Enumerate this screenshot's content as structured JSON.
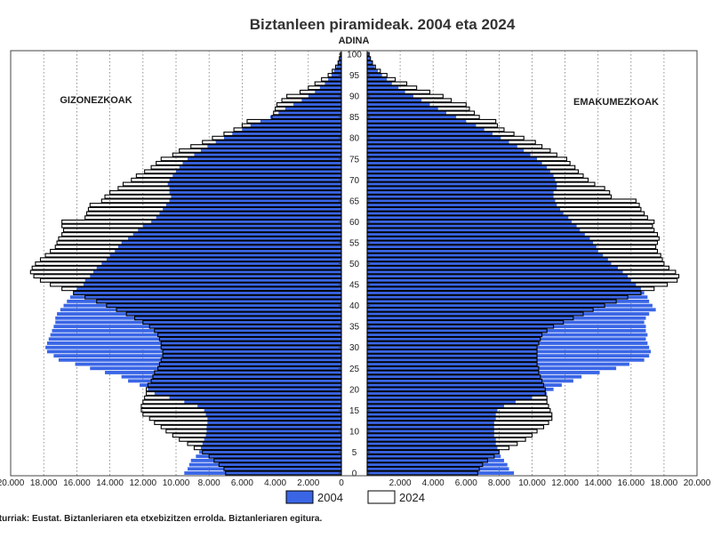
{
  "chart_data": {
    "type": "bar",
    "title": "Biztanleen piramideak. 2004 eta 2024",
    "center_label": "ADINA",
    "left_label": "GIZONEZKOAK",
    "right_label": "EMAKUMEZKOAK",
    "source": "Iturriak: Eustat. Biztanleriaren eta etxebizitzen errolda. Biztanleriaren egitura.",
    "ages": [
      0,
      1,
      2,
      3,
      4,
      5,
      6,
      7,
      8,
      9,
      10,
      11,
      12,
      13,
      14,
      15,
      16,
      17,
      18,
      19,
      20,
      21,
      22,
      23,
      24,
      25,
      26,
      27,
      28,
      29,
      30,
      31,
      32,
      33,
      34,
      35,
      36,
      37,
      38,
      39,
      40,
      41,
      42,
      43,
      44,
      45,
      46,
      47,
      48,
      49,
      50,
      51,
      52,
      53,
      54,
      55,
      56,
      57,
      58,
      59,
      60,
      61,
      62,
      63,
      64,
      65,
      66,
      67,
      68,
      69,
      70,
      71,
      72,
      73,
      74,
      75,
      76,
      77,
      78,
      79,
      80,
      81,
      82,
      83,
      84,
      85,
      86,
      87,
      88,
      89,
      90,
      91,
      92,
      93,
      94,
      95,
      96,
      97,
      98,
      99,
      100
    ],
    "age_ticks": [
      0,
      5,
      10,
      15,
      20,
      25,
      30,
      35,
      40,
      45,
      50,
      55,
      60,
      65,
      70,
      75,
      80,
      85,
      90,
      95,
      100
    ],
    "x_ticks": [
      "20.000",
      "18.000",
      "16.000",
      "14.000",
      "12.000",
      "10.000",
      "8.000",
      "6.000",
      "4.000",
      "2.000",
      "0",
      "2.000",
      "4.000",
      "6.000",
      "8.000",
      "10.000",
      "12.000",
      "14.000",
      "16.000",
      "18.000",
      "20.000"
    ],
    "xlim": [
      0,
      20000
    ],
    "series": [
      {
        "name": "2004",
        "color": "#3a66e6",
        "men": [
          9500,
          9300,
          9200,
          9100,
          8800,
          8600,
          8500,
          8400,
          8300,
          8200,
          8150,
          8150,
          8100,
          8100,
          8200,
          8300,
          8700,
          9500,
          10400,
          11300,
          11700,
          12200,
          12900,
          13300,
          14300,
          15200,
          16100,
          17100,
          17400,
          17800,
          17900,
          17800,
          17700,
          17600,
          17500,
          17400,
          17300,
          17300,
          17200,
          17000,
          16800,
          16600,
          16400,
          16200,
          16000,
          15600,
          15500,
          15200,
          15000,
          14800,
          14500,
          14200,
          14000,
          13700,
          13500,
          13300,
          12900,
          12600,
          12300,
          12000,
          11500,
          11200,
          11000,
          10800,
          10600,
          10400,
          10300,
          10400,
          10400,
          10500,
          10400,
          10200,
          10000,
          9800,
          9600,
          9300,
          8900,
          8500,
          8100,
          7600,
          7100,
          6600,
          6000,
          5500,
          4900,
          4300,
          3800,
          3400,
          2900,
          2400,
          2000,
          1600,
          1300,
          1000,
          800,
          600,
          450,
          300,
          200,
          140,
          80
        ],
        "women": [
          8900,
          8600,
          8500,
          8300,
          8100,
          8000,
          7900,
          7800,
          7800,
          7700,
          7700,
          7700,
          7700,
          7800,
          7800,
          7900,
          8300,
          9000,
          10000,
          10900,
          11300,
          11800,
          12500,
          13000,
          14100,
          15100,
          15900,
          16800,
          17100,
          17200,
          17100,
          17000,
          16900,
          17000,
          16900,
          16900,
          16800,
          16900,
          17100,
          17500,
          17300,
          17100,
          17000,
          16800,
          16600,
          16300,
          16000,
          15800,
          15500,
          15200,
          14800,
          14600,
          14300,
          14000,
          13900,
          13700,
          13500,
          13200,
          12900,
          12700,
          12400,
          12200,
          11900,
          11700,
          11500,
          11400,
          11300,
          11300,
          11500,
          11500,
          11400,
          11300,
          11100,
          10900,
          10600,
          10300,
          9900,
          9500,
          9100,
          8600,
          8100,
          7600,
          7100,
          6600,
          6000,
          5400,
          4800,
          4300,
          3800,
          3300,
          2800,
          2300,
          1900,
          1500,
          1200,
          900,
          650,
          450,
          300,
          200,
          120
        ]
      },
      {
        "name": "2024",
        "color": "#ffffff",
        "men": [
          7000,
          7100,
          7400,
          7700,
          8000,
          8400,
          8900,
          9300,
          9800,
          10200,
          10600,
          10900,
          11300,
          11600,
          12000,
          12100,
          12100,
          12000,
          11900,
          11800,
          11800,
          11700,
          11500,
          11400,
          11300,
          11100,
          11000,
          10900,
          10800,
          10800,
          10900,
          10900,
          11000,
          11100,
          11300,
          11600,
          12000,
          12500,
          13000,
          13600,
          14200,
          14800,
          15500,
          16200,
          16900,
          17600,
          18200,
          18600,
          18800,
          18700,
          18500,
          18200,
          17900,
          17600,
          17300,
          17200,
          17100,
          16900,
          16800,
          16900,
          16900,
          15500,
          15400,
          15300,
          15200,
          14500,
          14300,
          14000,
          13500,
          13200,
          12700,
          12400,
          11900,
          11500,
          11200,
          10900,
          10200,
          9800,
          9100,
          8400,
          7800,
          7100,
          6500,
          6000,
          5700,
          4200,
          4100,
          4000,
          3900,
          3600,
          3300,
          2500,
          2000,
          1600,
          1200,
          800,
          550,
          350,
          200,
          120,
          60
        ],
        "women": [
          6700,
          6800,
          7000,
          7300,
          7700,
          8000,
          8600,
          9100,
          9600,
          10000,
          10300,
          10700,
          11000,
          11200,
          11200,
          11100,
          11000,
          10900,
          10900,
          10800,
          10800,
          10700,
          10600,
          10500,
          10400,
          10400,
          10300,
          10300,
          10300,
          10300,
          10300,
          10400,
          10500,
          10600,
          10900,
          11300,
          11900,
          12500,
          13100,
          13700,
          14400,
          15100,
          15800,
          16600,
          17400,
          18200,
          18800,
          18900,
          18700,
          18300,
          18000,
          17900,
          17800,
          17600,
          17500,
          17600,
          17700,
          17600,
          17400,
          17300,
          17400,
          17000,
          16800,
          16600,
          16500,
          16300,
          14800,
          14700,
          14400,
          13800,
          13400,
          13100,
          12800,
          12600,
          12300,
          12100,
          11500,
          11100,
          10600,
          10200,
          9500,
          8900,
          8300,
          7900,
          7800,
          6800,
          6500,
          6200,
          6000,
          5100,
          4600,
          3800,
          3000,
          2400,
          1700,
          1200,
          800,
          500,
          320,
          200,
          120
        ]
      }
    ]
  }
}
